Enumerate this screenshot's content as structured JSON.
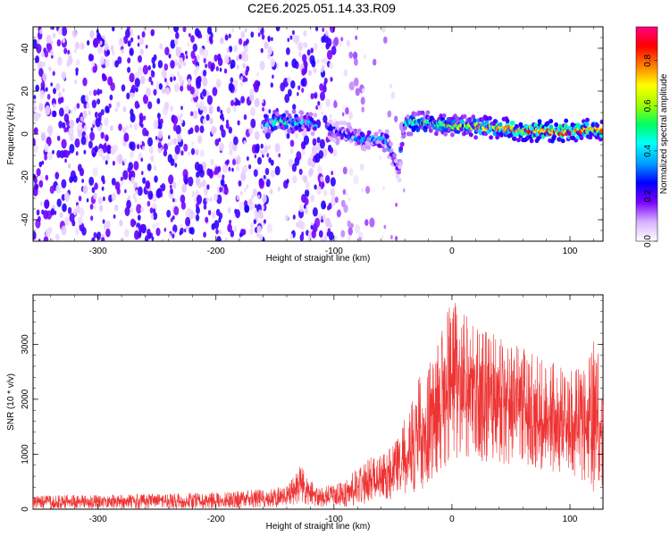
{
  "title": "C2E6.2025.051.14.33.R09",
  "chart_data": [
    {
      "type": "heatmap",
      "title": "C2E6.2025.051.14.33.R09",
      "xlabel": "Height of straight line (km)",
      "ylabel": "Frequency (Hz)",
      "xlim": [
        -355,
        128
      ],
      "ylim": [
        -50,
        50
      ],
      "xticks": [
        -300,
        -200,
        -100,
        0,
        100
      ],
      "yticks": [
        -40,
        -20,
        0,
        20,
        40
      ],
      "colorbar": {
        "label": "Normalized spectral amplitude",
        "range": [
          0,
          0.95
        ],
        "ticks": [
          0.0,
          0.2,
          0.4,
          0.6,
          0.8
        ],
        "colormap": [
          "#ffffff",
          "#d8b0ff",
          "#7a00ff",
          "#0000ff",
          "#00a0ff",
          "#00ffff",
          "#00ff60",
          "#a0ff00",
          "#ffff00",
          "#ff8000",
          "#ff0000",
          "#ff0080"
        ]
      },
      "signal_ridge": {
        "description_points": [
          {
            "x": -160,
            "freq": 5,
            "amp": 0.35
          },
          {
            "x": -145,
            "freq": 6,
            "amp": 0.55
          },
          {
            "x": -120,
            "freq": 5,
            "amp": 0.4
          },
          {
            "x": -100,
            "freq": 2,
            "amp": 0.25
          },
          {
            "x": -80,
            "freq": -2,
            "amp": 0.35
          },
          {
            "x": -55,
            "freq": -3,
            "amp": 0.4
          },
          {
            "x": -45,
            "freq": -18,
            "amp": 0.2
          },
          {
            "x": -40,
            "freq": 5,
            "amp": 0.5
          },
          {
            "x": -20,
            "freq": 5,
            "amp": 0.55
          },
          {
            "x": 0,
            "freq": 4,
            "amp": 0.6
          },
          {
            "x": 30,
            "freq": 3,
            "amp": 0.7
          },
          {
            "x": 60,
            "freq": 2,
            "amp": 0.85
          },
          {
            "x": 90,
            "freq": 1,
            "amp": 0.9
          },
          {
            "x": 120,
            "freq": 2,
            "amp": 0.75
          }
        ],
        "noise_region": [
          -355,
          -100
        ]
      }
    },
    {
      "type": "line",
      "xlabel": "Height of straight line (km)",
      "ylabel": "SNR (10 * v/v)",
      "xlim": [
        -355,
        128
      ],
      "ylim": [
        0,
        3900
      ],
      "xticks": [
        -300,
        -200,
        -100,
        0,
        100
      ],
      "yticks": [
        0,
        1000,
        2000,
        3000
      ],
      "color": "#ee3333",
      "envelope": [
        {
          "x": -355,
          "low": 0,
          "high": 250
        },
        {
          "x": -250,
          "low": 10,
          "high": 280
        },
        {
          "x": -180,
          "low": 20,
          "high": 330
        },
        {
          "x": -140,
          "low": 40,
          "high": 420
        },
        {
          "x": -128,
          "low": 80,
          "high": 820
        },
        {
          "x": -115,
          "low": 40,
          "high": 380
        },
        {
          "x": -90,
          "low": 50,
          "high": 520
        },
        {
          "x": -75,
          "low": 80,
          "high": 900
        },
        {
          "x": -60,
          "low": 150,
          "high": 1000
        },
        {
          "x": -45,
          "low": 200,
          "high": 1300
        },
        {
          "x": -30,
          "low": 300,
          "high": 2400
        },
        {
          "x": -15,
          "low": 500,
          "high": 2800
        },
        {
          "x": 0,
          "low": 900,
          "high": 3900
        },
        {
          "x": 20,
          "low": 900,
          "high": 3300
        },
        {
          "x": 40,
          "low": 800,
          "high": 3150
        },
        {
          "x": 60,
          "low": 800,
          "high": 2950
        },
        {
          "x": 80,
          "low": 700,
          "high": 2750
        },
        {
          "x": 100,
          "low": 600,
          "high": 2500
        },
        {
          "x": 115,
          "low": 400,
          "high": 2800
        },
        {
          "x": 120,
          "low": 300,
          "high": 3200
        },
        {
          "x": 128,
          "low": 400,
          "high": 2500
        }
      ]
    }
  ]
}
